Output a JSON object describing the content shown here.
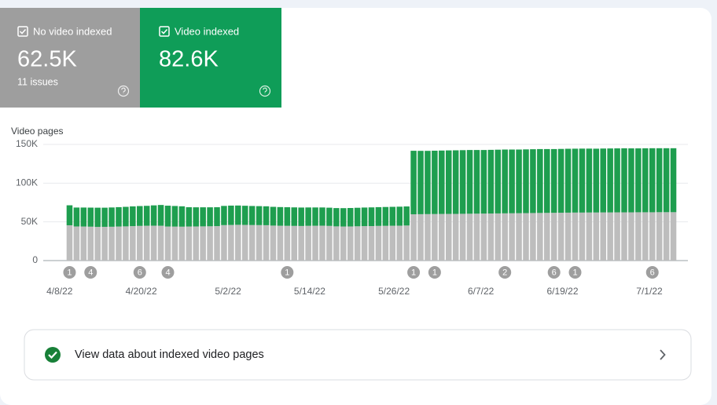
{
  "chart_data": {
    "type": "stacked-bar",
    "y_label": "Video pages",
    "categories": [
      "4/8/22",
      null,
      null,
      null,
      null,
      null,
      null,
      null,
      null,
      null,
      null,
      null,
      "4/20/22",
      null,
      null,
      null,
      null,
      null,
      null,
      null,
      null,
      null,
      null,
      null,
      "5/2/22",
      null,
      null,
      null,
      null,
      null,
      null,
      null,
      null,
      null,
      null,
      null,
      "5/14/22",
      null,
      null,
      null,
      null,
      null,
      null,
      null,
      null,
      null,
      null,
      null,
      "5/26/22",
      null,
      null,
      null,
      null,
      null,
      null,
      null,
      null,
      null,
      null,
      null,
      "6/7/22",
      null,
      null,
      null,
      null,
      null,
      null,
      null,
      null,
      null,
      null,
      null,
      "6/19/22",
      null,
      null,
      null,
      null,
      null,
      null,
      null,
      null,
      null,
      null,
      null,
      "7/1/22",
      null,
      null
    ],
    "annotations": [
      "1",
      null,
      null,
      "4",
      null,
      null,
      null,
      null,
      null,
      null,
      "6",
      null,
      null,
      null,
      "4",
      null,
      null,
      null,
      null,
      null,
      null,
      null,
      null,
      null,
      null,
      null,
      null,
      null,
      null,
      null,
      null,
      "1",
      null,
      null,
      null,
      null,
      null,
      null,
      null,
      null,
      null,
      null,
      null,
      null,
      null,
      null,
      null,
      null,
      null,
      "1",
      null,
      null,
      "1",
      null,
      null,
      null,
      null,
      null,
      null,
      null,
      null,
      null,
      "2",
      null,
      null,
      null,
      null,
      null,
      null,
      "6",
      null,
      null,
      "1",
      null,
      null,
      null,
      null,
      null,
      null,
      null,
      null,
      null,
      null,
      "6",
      null,
      null,
      null
    ],
    "series": [
      {
        "name": "No video indexed",
        "color": "#bdbdbd",
        "total": "62.5K",
        "detail": "11 issues",
        "values": [
          45600,
          44100,
          44000,
          43800,
          43500,
          43600,
          43700,
          44000,
          44200,
          44500,
          44800,
          45000,
          45100,
          45000,
          44000,
          43900,
          43800,
          44000,
          44100,
          44200,
          44300,
          44500,
          45800,
          46000,
          46200,
          46100,
          45900,
          45800,
          45700,
          45200,
          45000,
          44900,
          44800,
          44700,
          44900,
          45000,
          45100,
          44800,
          44200,
          44000,
          44100,
          44300,
          44500,
          44600,
          44800,
          44900,
          45000,
          45100,
          45300,
          59800,
          59900,
          60000,
          60100,
          60200,
          60300,
          60300,
          60400,
          60500,
          60600,
          60700,
          60800,
          60900,
          61000,
          61100,
          61200,
          61300,
          61400,
          61500,
          61600,
          61700,
          61800,
          61900,
          62000,
          62000,
          62100,
          62100,
          62200,
          62200,
          62300,
          62300,
          62300,
          62400,
          62400,
          62400,
          62500,
          62500,
          62500
        ]
      },
      {
        "name": "Video indexed",
        "color": "#1e9e4f",
        "total": "82.6K",
        "values": [
          25800,
          24400,
          24500,
          24600,
          24800,
          24700,
          24900,
          25000,
          25200,
          25500,
          25600,
          25700,
          26200,
          26800,
          26900,
          26600,
          26300,
          24900,
          24700,
          24600,
          24500,
          24400,
          24800,
          25000,
          24900,
          24700,
          24600,
          24500,
          24400,
          24200,
          24100,
          24000,
          23900,
          23800,
          23700,
          23600,
          23500,
          23500,
          23600,
          23700,
          23800,
          23900,
          24000,
          24100,
          24200,
          24300,
          24400,
          24500,
          24600,
          82000,
          81800,
          81700,
          81800,
          81900,
          82000,
          82100,
          82200,
          82300,
          82200,
          82100,
          82200,
          82300,
          82400,
          82300,
          82200,
          82300,
          82400,
          82500,
          82400,
          82300,
          82400,
          82500,
          82500,
          82600,
          82500,
          82400,
          82500,
          82600,
          82600,
          82700,
          82600,
          82500,
          82600,
          82700,
          82600,
          82600,
          82600
        ]
      }
    ],
    "ylim": [
      0,
      150000
    ],
    "yticks": [
      0,
      {
        "value": 50000,
        "label": "50K"
      },
      {
        "value": 100000,
        "label": "100K"
      },
      {
        "value": 150000,
        "label": "150K"
      }
    ],
    "grid": true
  },
  "link": {
    "label": "View data about indexed video pages"
  }
}
